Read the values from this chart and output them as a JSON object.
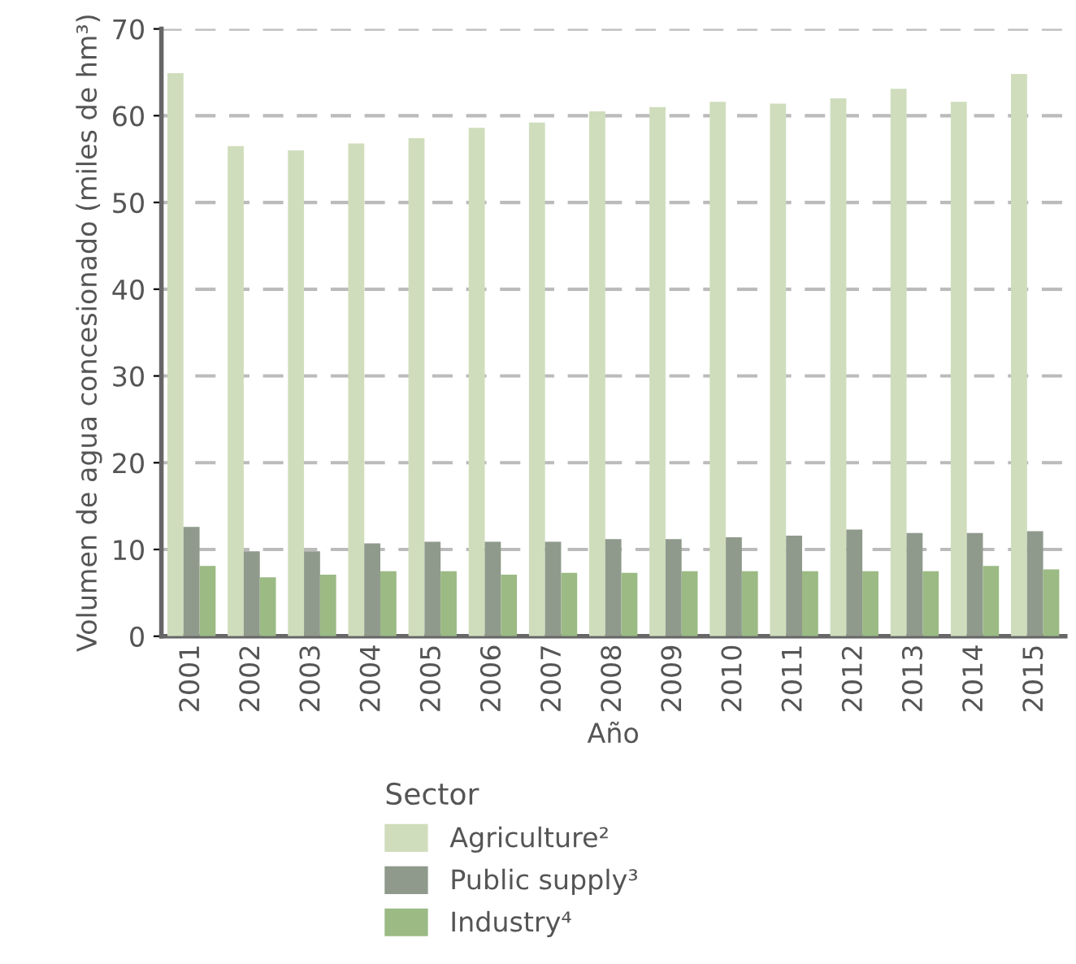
{
  "chart_data": {
    "type": "bar",
    "xlabel": "Año",
    "ylabel": "Volumen de agua concesionado (miles de hm³)",
    "legend_title": "Sector",
    "categories": [
      "2001",
      "2002",
      "2003",
      "2004",
      "2005",
      "2006",
      "2007",
      "2008",
      "2009",
      "2010",
      "2011",
      "2012",
      "2013",
      "2014",
      "2015"
    ],
    "series": [
      {
        "name": "Agriculture²",
        "color": "#cfddbc",
        "values": [
          64.9,
          56.5,
          56.0,
          56.8,
          57.4,
          58.6,
          59.2,
          60.5,
          61.0,
          61.6,
          61.4,
          62.0,
          63.1,
          61.6,
          64.8
        ]
      },
      {
        "name": "Public supply³",
        "color": "#8f9a8c",
        "values": [
          12.6,
          9.8,
          9.8,
          10.7,
          10.9,
          10.9,
          10.9,
          11.2,
          11.2,
          11.4,
          11.6,
          12.3,
          11.9,
          11.9,
          12.1
        ]
      },
      {
        "name": "Industry⁴",
        "color": "#9bba84",
        "values": [
          8.1,
          6.8,
          7.1,
          7.5,
          7.5,
          7.1,
          7.3,
          7.3,
          7.5,
          7.5,
          7.5,
          7.5,
          7.5,
          8.1,
          7.7
        ]
      }
    ],
    "ylim": [
      0,
      70
    ],
    "yticks": [
      0,
      10,
      20,
      30,
      40,
      50,
      60,
      70
    ],
    "grid": "y",
    "legend": "bottom"
  }
}
